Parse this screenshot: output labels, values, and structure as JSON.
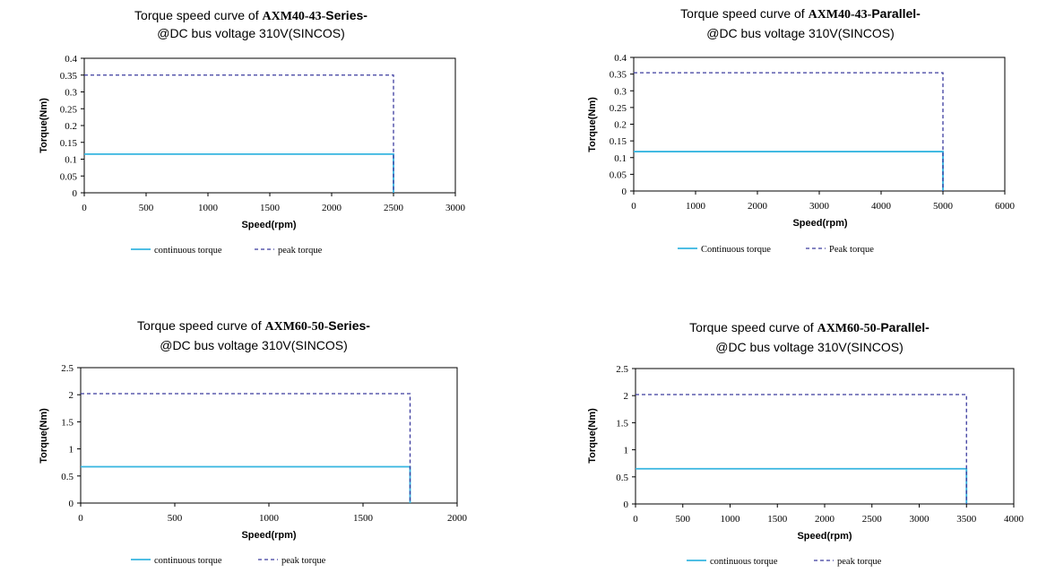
{
  "colors": {
    "continuous": "#36b5e0",
    "peak": "#3b3b9e",
    "frame": "#000000"
  },
  "chart_data": [
    {
      "type": "line",
      "title_prefix": "Torque speed curve of ",
      "title_model": "AXM40-43-",
      "title_variant": "Series-",
      "subtitle": "@DC bus voltage 310V(SINCOS)",
      "xlabel": "Speed(rpm)",
      "ylabel": "Torque(Nm)",
      "xlim": [
        0,
        3000
      ],
      "ylim": [
        0,
        0.4
      ],
      "xticks": [
        0,
        500,
        1000,
        1500,
        2000,
        2500,
        3000
      ],
      "yticks": [
        0,
        0.05,
        0.1,
        0.15,
        0.2,
        0.25,
        0.3,
        0.35,
        0.4
      ],
      "grid": false,
      "legend": "bottom",
      "series": [
        {
          "name": "continuous torque",
          "style": "solid",
          "x": [
            0,
            2500,
            2500
          ],
          "y": [
            0.115,
            0.115,
            0
          ]
        },
        {
          "name": "peak torque",
          "style": "dashed",
          "x": [
            0,
            2500,
            2500
          ],
          "y": [
            0.35,
            0.35,
            0
          ]
        }
      ]
    },
    {
      "type": "line",
      "title_prefix": "Torque speed curve of ",
      "title_model": "AXM40-43-",
      "title_variant": "Parallel-",
      "subtitle": "@DC bus voltage 310V(SINCOS)",
      "xlabel": "Speed(rpm)",
      "ylabel": "Torque(Nm)",
      "xlim": [
        0,
        6000
      ],
      "ylim": [
        0,
        0.4
      ],
      "xticks": [
        0,
        1000,
        2000,
        3000,
        4000,
        5000,
        6000
      ],
      "yticks": [
        0,
        0.05,
        0.1,
        0.15,
        0.2,
        0.25,
        0.3,
        0.35,
        0.4
      ],
      "grid": false,
      "legend": "bottom",
      "series": [
        {
          "name": "Continuous torque",
          "style": "solid",
          "x": [
            0,
            5000,
            5000
          ],
          "y": [
            0.118,
            0.118,
            0
          ]
        },
        {
          "name": "Peak torque",
          "style": "dashed",
          "x": [
            0,
            5000,
            5000
          ],
          "y": [
            0.354,
            0.354,
            0
          ]
        }
      ]
    },
    {
      "type": "line",
      "title_prefix": "Torque speed curve of ",
      "title_model": "AXM60-50-",
      "title_variant": "Series-",
      "subtitle": "@DC bus voltage 310V(SINCOS)",
      "xlabel": "Speed(rpm)",
      "ylabel": "Torque(Nm)",
      "xlim": [
        0,
        2000
      ],
      "ylim": [
        0,
        2.5
      ],
      "xticks": [
        0,
        500,
        1000,
        1500,
        2000
      ],
      "yticks": [
        0,
        0.5,
        1,
        1.5,
        2,
        2.5
      ],
      "grid": false,
      "legend": "bottom",
      "series": [
        {
          "name": "continuous torque",
          "style": "solid",
          "x": [
            0,
            1750,
            1750
          ],
          "y": [
            0.67,
            0.67,
            0
          ]
        },
        {
          "name": "peak torque",
          "style": "dashed",
          "x": [
            0,
            1750,
            1750
          ],
          "y": [
            2.02,
            2.02,
            0
          ]
        }
      ]
    },
    {
      "type": "line",
      "title_prefix": "Torque speed curve of ",
      "title_model": "AXM60-50-",
      "title_variant": "Parallel-",
      "subtitle": "@DC bus voltage 310V(SINCOS)",
      "xlabel": "Speed(rpm)",
      "ylabel": "Torque(Nm)",
      "xlim": [
        0,
        4000
      ],
      "ylim": [
        0,
        2.5
      ],
      "xticks": [
        0,
        500,
        1000,
        1500,
        2000,
        2500,
        3000,
        3500,
        4000
      ],
      "yticks": [
        0,
        0.5,
        1,
        1.5,
        2,
        2.5
      ],
      "grid": false,
      "legend": "bottom",
      "series": [
        {
          "name": "continuous torque",
          "style": "solid",
          "x": [
            0,
            3500,
            3500
          ],
          "y": [
            0.65,
            0.65,
            0
          ]
        },
        {
          "name": "peak torque",
          "style": "dashed",
          "x": [
            0,
            3500,
            3500
          ],
          "y": [
            2.02,
            2.02,
            0
          ]
        }
      ]
    }
  ]
}
